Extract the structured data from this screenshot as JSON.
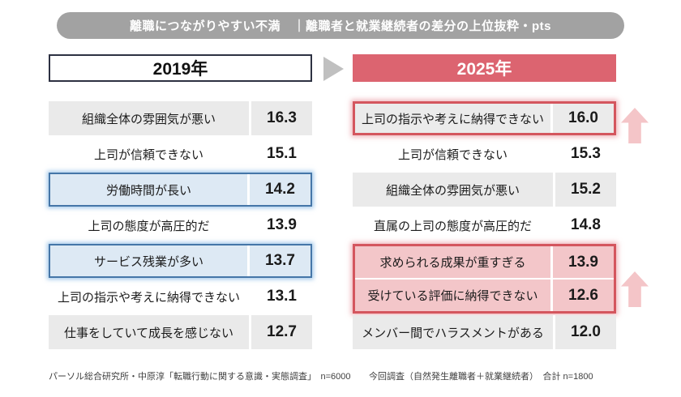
{
  "header": {
    "title": "離職につながりやすい不満　｜離職者と就業継続者の差分の上位抜粋・pts"
  },
  "columns": [
    {
      "year_label": "2019年",
      "source_note": "パーソル総合研究所・中原淳「転職行動に関する意識・実態調査」　n=6000",
      "rows": [
        {
          "label": "組織全体の雰囲気が悪い",
          "value": "16.3",
          "highlighted": false
        },
        {
          "label": "上司が信頼できない",
          "value": "15.1",
          "highlighted": false
        },
        {
          "label": "労働時間が長い",
          "value": "14.2",
          "highlighted": true
        },
        {
          "label": "上司の態度が高圧的だ",
          "value": "13.9",
          "highlighted": false
        },
        {
          "label": "サービス残業が多い",
          "value": "13.7",
          "highlighted": true
        },
        {
          "label": "上司の指示や考えに納得できない",
          "value": "13.1",
          "highlighted": false
        },
        {
          "label": "仕事をしていて成長を感じない",
          "value": "12.7",
          "highlighted": false
        }
      ]
    },
    {
      "year_label": "2025年",
      "source_note": "今回調査（自然発生離職者＋就業継続者）　合計 n=1800",
      "rows": [
        {
          "label": "上司の指示や考えに納得できない",
          "value": "16.0",
          "highlighted": true
        },
        {
          "label": "上司が信頼できない",
          "value": "15.3",
          "highlighted": false
        },
        {
          "label": "組織全体の雰囲気が悪い",
          "value": "15.2",
          "highlighted": false
        },
        {
          "label": "直属の上司の態度が高圧的だ",
          "value": "14.8",
          "highlighted": false
        },
        {
          "label": "求められる成果が重すぎる",
          "value": "13.9",
          "highlighted": true
        },
        {
          "label": "受けている評価に納得できない",
          "value": "12.6",
          "highlighted": true
        },
        {
          "label": "メンバー間でハラスメントがある",
          "value": "12.0",
          "highlighted": false
        }
      ]
    }
  ],
  "colors": {
    "pill_gray": "#a2a2a2",
    "year_2025_red": "#dc6470",
    "shaded_row": "#eaeaea",
    "blue_highlight_fill": "#dde9f4",
    "blue_highlight_border": "#4576a8",
    "red_highlight_border": "#d4565e",
    "pink_highlight_fill": "#f3c6c9",
    "increase_arrow_pink": "#f4c5c8",
    "mid_arrow_gray": "#c0c0c0"
  },
  "chart_data": {
    "type": "table",
    "title": "離職につながりやすい不満 ｜離職者と就業継続者の差分の上位抜粋・pts",
    "unit": "pts",
    "series": [
      {
        "name": "2019年",
        "labels": [
          "組織全体の雰囲気が悪い",
          "上司が信頼できない",
          "労働時間が長い",
          "上司の態度が高圧的だ",
          "サービス残業が多い",
          "上司の指示や考えに納得できない",
          "仕事をしていて成長を感じない"
        ],
        "values": [
          16.3,
          15.1,
          14.2,
          13.9,
          13.7,
          13.1,
          12.7
        ],
        "highlighted_labels": [
          "労働時間が長い",
          "サービス残業が多い"
        ]
      },
      {
        "name": "2025年",
        "labels": [
          "上司の指示や考えに納得できない",
          "上司が信頼できない",
          "組織全体の雰囲気が悪い",
          "直属の上司の態度が高圧的だ",
          "求められる成果が重すぎる",
          "受けている評価に納得できない",
          "メンバー間でハラスメントがある"
        ],
        "values": [
          16.0,
          15.3,
          15.2,
          14.8,
          13.9,
          12.6,
          12.0
        ],
        "highlighted_labels": [
          "上司の指示や考えに納得できない",
          "求められる成果が重すぎる",
          "受けている評価に納得できない"
        ]
      }
    ],
    "legend_position": "none",
    "notes": [
      "パーソル総合研究所・中原淳「転職行動に関する意識・実態調査」 n=6000",
      "今回調査（自然発生離職者＋就業継続者） 合計 n=1800"
    ]
  }
}
